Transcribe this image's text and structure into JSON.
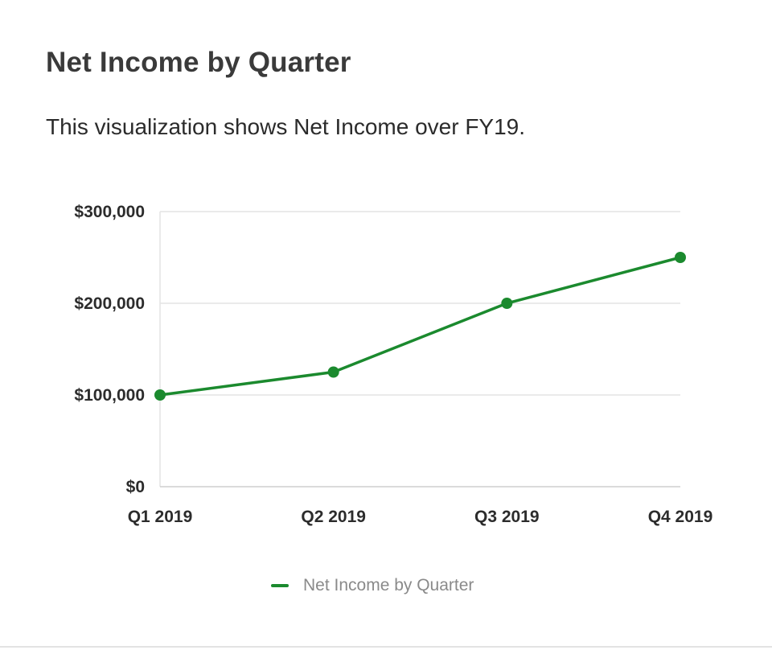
{
  "header": {
    "title": "Net Income by Quarter",
    "description": "This visualization shows Net Income over FY19."
  },
  "colors": {
    "series": "#1b8a2e",
    "grid": "#e4e4e4",
    "axis": "#cfcfcf"
  },
  "chart_data": {
    "type": "line",
    "categories": [
      "Q1 2019",
      "Q2 2019",
      "Q3 2019",
      "Q4 2019"
    ],
    "series": [
      {
        "name": "Net Income by Quarter",
        "values": [
          100000,
          125000,
          200000,
          250000
        ]
      }
    ],
    "y_ticks": [
      0,
      100000,
      200000,
      300000
    ],
    "y_tick_labels": [
      "$0",
      "$100,000",
      "$200,000",
      "$300,000"
    ],
    "ylim": [
      0,
      300000
    ],
    "xlabel": "",
    "ylabel": "",
    "grid": true,
    "legend": "bottom-center"
  }
}
